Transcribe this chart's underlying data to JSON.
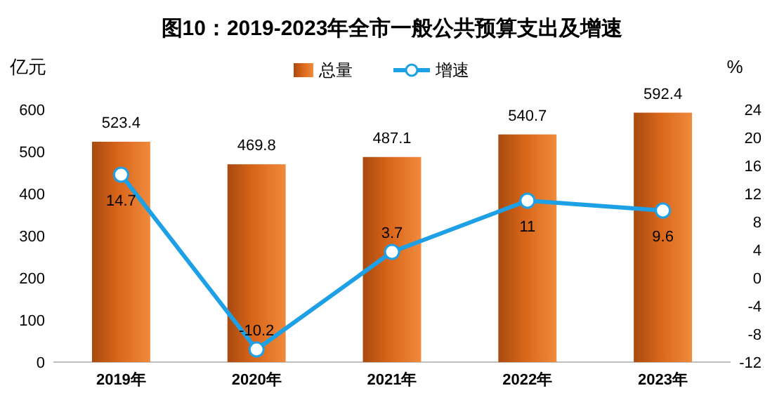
{
  "chart_data": {
    "type": "bar",
    "title": "图10：2019-2023年全市一般公共预算支出及增速",
    "ylabel": "亿元",
    "y2label": "%",
    "categories": [
      "2019年",
      "2020年",
      "2021年",
      "2022年",
      "2023年"
    ],
    "series": [
      {
        "name": "总量",
        "color": "#d9661a",
        "values": [
          523.4,
          469.8,
          487.1,
          540.7,
          592.4
        ]
      },
      {
        "name": "增速",
        "type": "line",
        "axis": "y2",
        "color": "#1ea0e6",
        "marker": "circle",
        "values": [
          14.7,
          -10.2,
          3.7,
          11,
          9.6
        ]
      }
    ],
    "ylim": [
      0,
      600
    ],
    "yticks": [
      0,
      100,
      200,
      300,
      400,
      500,
      600
    ],
    "y2lim": [
      -12,
      24
    ],
    "y2ticks": [
      -12,
      -8,
      -4,
      0,
      4,
      8,
      12,
      16,
      20,
      24
    ],
    "data_labels": true,
    "legend": "top",
    "grid": false
  }
}
